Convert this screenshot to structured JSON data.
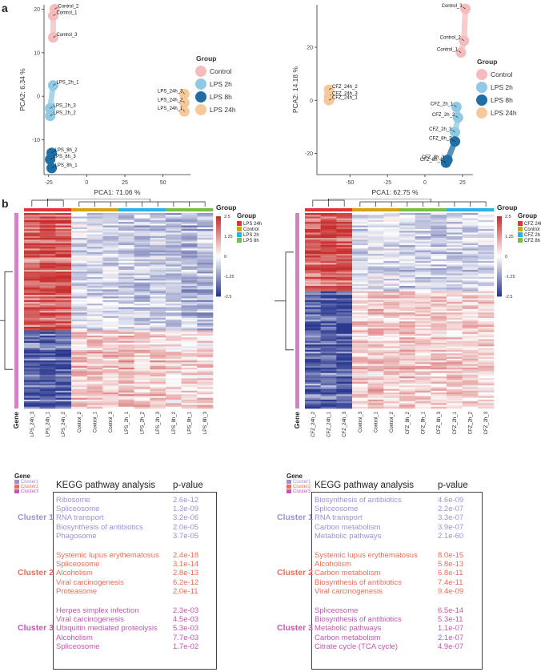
{
  "panel_labels": {
    "a": "a",
    "b": "b"
  },
  "colors": {
    "control": "#f4bcbc",
    "lps2h": "#8fc9e3",
    "lps8h": "#1f6fa4",
    "lps24h": "#f5c99a",
    "hm_red": "#c8302f",
    "hm_blue": "#2b3990",
    "cluster1": "#a18ed6",
    "cluster2": "#ee6b55",
    "cluster3": "#c456b0",
    "bar_control": "#d8a010",
    "bar_24h": "#e83030",
    "bar_2h": "#2ab1e6",
    "bar_8h": "#74c045",
    "gene_bar": "#d482c4"
  },
  "chart_data": [
    {
      "type": "scatter",
      "title": "",
      "xlabel": "PCA1: 71.06 %",
      "ylabel": "PCA2: 6.34 %",
      "xlim": [
        -28,
        68
      ],
      "ylim": [
        -18,
        21
      ],
      "xticks": [
        "-25",
        "0",
        "25",
        "50"
      ],
      "yticks": [
        "20",
        "10",
        "0",
        "-10"
      ],
      "xtick_values": [
        -25,
        0,
        25,
        50
      ],
      "ytick_values": [
        20,
        10,
        0,
        -10
      ],
      "legend_title": "Group",
      "legend": [
        "Control",
        "LPS 2h",
        "LPS 8h",
        "LPS 24h"
      ],
      "points": [
        {
          "label": "Control_2",
          "x": -21,
          "y": 20,
          "group": 0
        },
        {
          "label": "Control_1",
          "x": -22,
          "y": 18.5,
          "group": 0
        },
        {
          "label": "Control_3",
          "x": -22,
          "y": 13.5,
          "group": 0
        },
        {
          "label": "LPS_2h_1",
          "x": -22,
          "y": 2.5,
          "group": 1
        },
        {
          "label": "LPS_2h_3",
          "x": -24,
          "y": -2.8,
          "group": 1
        },
        {
          "label": "LPS_2h_2",
          "x": -24,
          "y": -4.5,
          "group": 1
        },
        {
          "label": "LPS_8h_2",
          "x": -23,
          "y": -13,
          "group": 2
        },
        {
          "label": "LPS_8h_3",
          "x": -24,
          "y": -14.5,
          "group": 2
        },
        {
          "label": "LPS_8h_1",
          "x": -23,
          "y": -16.5,
          "group": 2
        },
        {
          "label": "LPS_24h_3",
          "x": 64,
          "y": 0.5,
          "group": 3
        },
        {
          "label": "LPS_24h_2",
          "x": 64,
          "y": -1.5,
          "group": 3
        },
        {
          "label": "LPS_24h_1",
          "x": 64,
          "y": -3.5,
          "group": 3
        }
      ]
    },
    {
      "type": "scatter",
      "title": "",
      "xlabel": "PCA1: 62.75 %",
      "ylabel": "PCA2: 14.18 %",
      "xlim": [
        -72,
        32
      ],
      "ylim": [
        -28,
        36
      ],
      "xticks": [
        "-50",
        "-25",
        "0",
        "25"
      ],
      "yticks": [
        "20",
        "0",
        "-20"
      ],
      "xtick_values": [
        -50,
        -25,
        0,
        25
      ],
      "ytick_values": [
        20,
        0,
        -20
      ],
      "legend_title": "Group",
      "legend": [
        "Control",
        "LPS 2h",
        "LPS 8h",
        "LPS 24h"
      ],
      "points": [
        {
          "label": "Control_3",
          "x": 27,
          "y": 34.5,
          "group": 0
        },
        {
          "label": "Control_2",
          "x": 26,
          "y": 22.5,
          "group": 0
        },
        {
          "label": "Control_1",
          "x": 24,
          "y": 18,
          "group": 0
        },
        {
          "label": "CFZ_24h_2",
          "x": -64,
          "y": 4,
          "group": 3
        },
        {
          "label": "CFZ_24h_3",
          "x": -64,
          "y": 1.5,
          "group": 3
        },
        {
          "label": "CFZ_24h_1",
          "x": -64,
          "y": 0,
          "group": 3
        },
        {
          "label": "CFZ_2h_1",
          "x": 21,
          "y": -2.5,
          "group": 1
        },
        {
          "label": "CFZ_2h_2",
          "x": 22,
          "y": -6.5,
          "group": 1
        },
        {
          "label": "CFZ_2h_3",
          "x": 20,
          "y": -12,
          "group": 1
        },
        {
          "label": "CFZ_8h_2",
          "x": 20,
          "y": -15.5,
          "group": 2
        },
        {
          "label": "CFZ_8h_3",
          "x": 15,
          "y": -22.5,
          "group": 2
        },
        {
          "label": "CFZ_8h_1",
          "x": 14,
          "y": -23.5,
          "group": 2
        }
      ]
    },
    {
      "type": "heatmap",
      "title": "Group",
      "columns": [
        "LPS_24h_3",
        "LPS_24h_1",
        "LPS_24h_2",
        "Control_2",
        "Control_1",
        "Control_3",
        "LPS_2h_1",
        "LPS_2h_2",
        "LPS_2h_3",
        "LPS_8h_2",
        "LPS_8h_1",
        "LPS_8h_3"
      ],
      "column_groups": [
        0,
        0,
        0,
        1,
        1,
        1,
        2,
        2,
        2,
        3,
        3,
        3
      ],
      "legend_title": "Group",
      "legend": [
        "LPS 24h",
        "Control",
        "LPS 2h",
        "LPS 8h"
      ],
      "color_scale": [
        "2.5",
        "1.25",
        "0",
        "-1.25",
        "-2.5"
      ],
      "color_scale_values": [
        2.5,
        1.25,
        0,
        -1.25,
        -2.5
      ],
      "row_label": "Gene",
      "clusters": [
        {
          "name": "upper",
          "fraction": 0.6,
          "pattern": [
            2.0,
            2.2,
            2.1,
            -0.4,
            -0.5,
            -0.5,
            -0.6,
            -0.7,
            -0.6,
            -0.8,
            -0.9,
            -0.9
          ]
        },
        {
          "name": "lower",
          "fraction": 0.4,
          "pattern": [
            -2.0,
            -2.1,
            -2.0,
            0.7,
            0.7,
            0.7,
            0.8,
            0.6,
            0.7,
            0.4,
            0.5,
            0.5
          ]
        }
      ]
    },
    {
      "type": "heatmap",
      "title": "Group",
      "columns": [
        "CFZ_24h_2",
        "CFZ_24h_1",
        "CFZ_24h_3",
        "Control_3",
        "Control_1",
        "Control_2",
        "CFZ_8h_2",
        "CFZ_8h_1",
        "CFZ_8h_3",
        "CFZ_2h_1",
        "CFZ_2h_2",
        "CFZ_2h_3"
      ],
      "column_groups": [
        0,
        0,
        0,
        1,
        1,
        1,
        3,
        3,
        3,
        2,
        2,
        2
      ],
      "legend_title": "Group",
      "legend": [
        "CFZ 24h",
        "Control",
        "CFZ 2h",
        "CFZ 8h"
      ],
      "color_scale": [
        "2.5",
        "1.25",
        "0",
        "-1.25",
        "-2.5"
      ],
      "color_scale_values": [
        2.5,
        1.25,
        0,
        -1.25,
        -2.5
      ],
      "row_label": "Gene",
      "clusters": [
        {
          "name": "upper",
          "fraction": 0.4,
          "pattern": [
            1.8,
            2.1,
            2.0,
            -0.4,
            -0.3,
            -0.4,
            -0.6,
            -0.5,
            -0.6,
            -0.5,
            -0.5,
            -0.4
          ]
        },
        {
          "name": "lower",
          "fraction": 0.6,
          "pattern": [
            -2.0,
            -2.0,
            -2.1,
            0.6,
            0.7,
            0.6,
            0.7,
            0.6,
            0.6,
            0.6,
            0.5,
            0.5
          ]
        }
      ]
    }
  ],
  "gene_legend": {
    "title": "Gene",
    "items": [
      "Cluster1",
      "Cluster2",
      "Cluster3"
    ]
  },
  "kegg_left": {
    "header": "KEGG pathway analysis",
    "pheader": "p-value",
    "clusters": [
      {
        "name": "Cluster 1",
        "color": "#a18ed6",
        "rows": [
          {
            "term": "Ribosome",
            "p": "2.6e-12"
          },
          {
            "term": "Spliceosome",
            "p": "1.3e-09"
          },
          {
            "term": "RNA transport",
            "p": "3.2e-06"
          },
          {
            "term": "Biosynthesis of antibiotics",
            "p": "2.0e-05"
          },
          {
            "term": "Phagosome",
            "p": "3.7e-05"
          }
        ]
      },
      {
        "name": "Cluster 2",
        "color": "#ee6b55",
        "rows": [
          {
            "term": "Systemic lupus erythematosus",
            "p": "2.4e-18"
          },
          {
            "term": "Spliceosome",
            "p": "3.1e-14"
          },
          {
            "term": "Alcoholism",
            "p": "2.8e-13"
          },
          {
            "term": "Viral carcinogenesis",
            "p": "6.2e-12"
          },
          {
            "term": "Proteasome",
            "p": "2.0e-11"
          }
        ]
      },
      {
        "name": "Cluster 3",
        "color": "#c456b0",
        "rows": [
          {
            "term": "Herpes simplex infection",
            "p": "2.3e-03"
          },
          {
            "term": "Viral carcinogenesis",
            "p": "4.5e-03"
          },
          {
            "term": "Ubiquitin mediated proteolysis",
            "p": "5.3e-03"
          },
          {
            "term": "Alcoholism",
            "p": "7.7e-03"
          },
          {
            "term": "Spliceosome",
            "p": "1.7e-02"
          }
        ]
      }
    ]
  },
  "kegg_right": {
    "header": "KEGG pathway analysis",
    "pheader": "p-value",
    "clusters": [
      {
        "name": "Cluster 1",
        "color": "#a18ed6",
        "rows": [
          {
            "term": "Biosynthesis of antibiotics",
            "p": "4.6e-09"
          },
          {
            "term": "Spliceosome",
            "p": "2.2e-07"
          },
          {
            "term": "RNA transport",
            "p": "3.3e-07"
          },
          {
            "term": "Carbon metabolism",
            "p": "3.9e-07"
          },
          {
            "term": "Metabolic pathways",
            "p": "2.1e-60"
          }
        ]
      },
      {
        "name": "Cluster 2",
        "color": "#ee6b55",
        "rows": [
          {
            "term": "Systemic lupus erythematosus",
            "p": "8.0e-15"
          },
          {
            "term": "Alcoholism",
            "p": "5.8e-13"
          },
          {
            "term": "Carbon metabolism",
            "p": "6.8e-11"
          },
          {
            "term": "Biosynthesis of antibiotics",
            "p": "7.4e-11"
          },
          {
            "term": "Viral carcinogenesis",
            "p": "9.4e-09"
          }
        ]
      },
      {
        "name": "Cluster 3",
        "color": "#c456b0",
        "rows": [
          {
            "term": "Spliceosome",
            "p": "6.5e-14"
          },
          {
            "term": "Biosynthesis of antibiotics",
            "p": "5.3e-11"
          },
          {
            "term": "Metabolic pathways",
            "p": "1.1e-07"
          },
          {
            "term": "Carbon metabolism",
            "p": "2.1e-07"
          },
          {
            "term": "Citrate cycle (TCA cycle)",
            "p": "4.9e-07"
          }
        ]
      }
    ]
  }
}
